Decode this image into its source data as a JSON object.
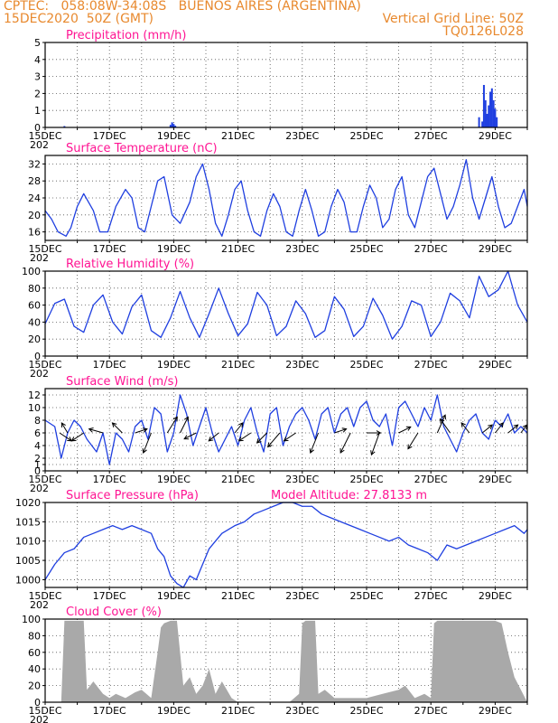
{
  "header": {
    "line1_left": "CPTEC:   058:08W-34:08S   BUENOS AIRES (ARGENTINA)",
    "line2_left": "15DEC2020  50Z (GMT)",
    "line2_right": "Vertical Grid Line: 50Z",
    "line3_right": "TQ0126L028"
  },
  "colors": {
    "header": "#e8892e",
    "title": "#ff1493",
    "series": "#1f3fe0",
    "cloud": "#a9a9a9",
    "arrow": "#000000"
  },
  "chart_data": [
    {
      "id": "precip",
      "type": "bar",
      "title": "Precipitation (mm/h)",
      "x_range": [
        15,
        30
      ],
      "ylim": [
        0,
        5
      ],
      "yticks": [
        0,
        1,
        2,
        3,
        4,
        5
      ],
      "x": [
        15.6,
        18.9,
        18.95,
        19.0,
        19.05,
        28.5,
        28.6,
        28.65,
        28.7,
        28.75,
        28.8,
        28.85,
        28.9,
        28.95,
        29.0,
        29.05
      ],
      "values": [
        0.08,
        0.15,
        0.3,
        0.2,
        0.1,
        0.6,
        0.35,
        2.5,
        1.6,
        0.8,
        1.3,
        2.1,
        2.3,
        1.6,
        1.1,
        0.6
      ]
    },
    {
      "id": "temp",
      "type": "line",
      "title": "Surface Temperature (nC)",
      "x_range": [
        15,
        30
      ],
      "ylim": [
        14,
        34
      ],
      "yticks": [
        16,
        20,
        24,
        28,
        32
      ],
      "x": [
        15.0,
        15.2,
        15.4,
        15.65,
        15.8,
        16.0,
        16.2,
        16.5,
        16.7,
        16.95,
        17.2,
        17.5,
        17.7,
        17.9,
        18.1,
        18.3,
        18.5,
        18.7,
        18.95,
        19.2,
        19.5,
        19.7,
        19.9,
        20.1,
        20.3,
        20.5,
        20.7,
        20.9,
        21.1,
        21.3,
        21.5,
        21.7,
        21.9,
        22.1,
        22.3,
        22.5,
        22.7,
        22.9,
        23.1,
        23.3,
        23.5,
        23.7,
        23.9,
        24.1,
        24.3,
        24.5,
        24.7,
        24.9,
        25.1,
        25.3,
        25.5,
        25.7,
        25.9,
        26.1,
        26.3,
        26.5,
        26.7,
        26.9,
        27.1,
        27.3,
        27.5,
        27.7,
        27.9,
        28.1,
        28.3,
        28.5,
        28.7,
        28.9,
        29.1,
        29.3,
        29.5,
        29.7,
        29.9,
        30.0
      ],
      "values": [
        21,
        19,
        16,
        15,
        17,
        22,
        25,
        21,
        16,
        16,
        22,
        26,
        24,
        17,
        16,
        22,
        28,
        29,
        20,
        18,
        23,
        29,
        32,
        26,
        18,
        15,
        20,
        26,
        28,
        21,
        16,
        15,
        21,
        25,
        22,
        16,
        15,
        21,
        26,
        21,
        15,
        16,
        22,
        26,
        23,
        16,
        16,
        22,
        27,
        24,
        17,
        19,
        26,
        29,
        20,
        17,
        23,
        29,
        31,
        25,
        19,
        22,
        27,
        33,
        24,
        19,
        24,
        29,
        22,
        17,
        18,
        22,
        26,
        22
      ]
    },
    {
      "id": "rh",
      "type": "line",
      "title": "Relative Humidity (%)",
      "x_range": [
        15,
        30
      ],
      "ylim": [
        0,
        100
      ],
      "yticks": [
        0,
        20,
        40,
        60,
        80,
        100
      ],
      "x": [
        15.0,
        15.3,
        15.6,
        15.9,
        16.2,
        16.5,
        16.8,
        17.1,
        17.4,
        17.7,
        18.0,
        18.3,
        18.6,
        18.9,
        19.2,
        19.5,
        19.8,
        20.1,
        20.4,
        20.7,
        21.0,
        21.3,
        21.6,
        21.9,
        22.2,
        22.5,
        22.8,
        23.1,
        23.4,
        23.7,
        24.0,
        24.3,
        24.6,
        24.9,
        25.2,
        25.5,
        25.8,
        26.1,
        26.4,
        26.7,
        27.0,
        27.3,
        27.6,
        27.9,
        28.2,
        28.5,
        28.8,
        29.1,
        29.4,
        29.7,
        30.0
      ],
      "values": [
        38,
        62,
        67,
        35,
        28,
        60,
        72,
        40,
        26,
        58,
        72,
        30,
        22,
        45,
        76,
        45,
        22,
        50,
        80,
        50,
        24,
        38,
        75,
        60,
        24,
        35,
        65,
        50,
        22,
        30,
        70,
        55,
        23,
        35,
        68,
        48,
        20,
        35,
        65,
        60,
        23,
        40,
        74,
        65,
        45,
        94,
        70,
        78,
        100,
        60,
        40
      ]
    },
    {
      "id": "wind",
      "type": "line",
      "title": "Surface Wind (m/s)",
      "x_range": [
        15,
        30
      ],
      "ylim": [
        0,
        13
      ],
      "yticks": [
        0,
        1,
        2,
        4,
        6,
        8,
        10,
        12
      ],
      "x": [
        15.0,
        15.3,
        15.5,
        15.7,
        15.9,
        16.1,
        16.3,
        16.6,
        16.8,
        17.0,
        17.2,
        17.4,
        17.6,
        17.8,
        18.0,
        18.2,
        18.4,
        18.6,
        18.8,
        19.0,
        19.2,
        19.4,
        19.6,
        19.8,
        20.0,
        20.2,
        20.4,
        20.6,
        20.8,
        21.0,
        21.2,
        21.4,
        21.6,
        21.8,
        22.0,
        22.2,
        22.4,
        22.6,
        22.8,
        23.0,
        23.2,
        23.4,
        23.6,
        23.8,
        24.0,
        24.2,
        24.4,
        24.6,
        24.8,
        25.0,
        25.2,
        25.4,
        25.6,
        25.8,
        26.0,
        26.2,
        26.4,
        26.6,
        26.8,
        27.0,
        27.2,
        27.4,
        27.6,
        27.8,
        28.0,
        28.2,
        28.4,
        28.6,
        28.8,
        29.0,
        29.2,
        29.4,
        29.6,
        29.8,
        30.0
      ],
      "values": [
        8,
        7,
        2,
        6,
        8,
        7,
        5,
        3,
        6,
        1,
        6,
        5,
        3,
        7,
        8,
        5,
        10,
        9,
        3,
        6,
        12,
        9,
        4,
        7,
        10,
        6,
        3,
        5,
        7,
        4,
        8,
        10,
        6,
        3,
        9,
        10,
        4,
        7,
        9,
        10,
        8,
        5,
        9,
        10,
        6,
        9,
        10,
        7,
        10,
        11,
        8,
        7,
        9,
        4,
        10,
        11,
        9,
        7,
        10,
        8,
        12,
        7,
        5,
        3,
        6,
        8,
        9,
        6,
        5,
        8,
        7,
        9,
        6,
        7,
        6
      ],
      "vectors": [
        {
          "x": 15.45,
          "u": 0.6,
          "v": -0.4
        },
        {
          "x": 15.7,
          "u": -0.3,
          "v": 0.5
        },
        {
          "x": 16.2,
          "u": -0.6,
          "v": -0.4
        },
        {
          "x": 16.8,
          "u": -0.7,
          "v": 0.2
        },
        {
          "x": 17.4,
          "u": -0.5,
          "v": 0.5
        },
        {
          "x": 17.8,
          "u": 0.6,
          "v": 0.2
        },
        {
          "x": 18.3,
          "u": -0.4,
          "v": -1.0
        },
        {
          "x": 18.8,
          "u": 0.5,
          "v": 0.8
        },
        {
          "x": 19.2,
          "u": 0.4,
          "v": 0.8
        },
        {
          "x": 19.7,
          "u": -0.6,
          "v": -0.3
        },
        {
          "x": 20.4,
          "u": -0.5,
          "v": -0.4
        },
        {
          "x": 20.9,
          "u": 0.4,
          "v": 0.5
        },
        {
          "x": 21.4,
          "u": -0.6,
          "v": -0.4
        },
        {
          "x": 21.9,
          "u": -0.5,
          "v": -0.5
        },
        {
          "x": 22.3,
          "u": -0.6,
          "v": -0.7
        },
        {
          "x": 22.8,
          "u": -0.6,
          "v": -0.4
        },
        {
          "x": 23.5,
          "u": -0.4,
          "v": -1.0
        },
        {
          "x": 24.0,
          "u": 0.6,
          "v": 0.2
        },
        {
          "x": 24.5,
          "u": -0.5,
          "v": -1.0
        },
        {
          "x": 25.0,
          "u": 0.7,
          "v": 0.0
        },
        {
          "x": 25.4,
          "u": -0.4,
          "v": -1.1
        },
        {
          "x": 26.0,
          "u": 0.6,
          "v": 0.3
        },
        {
          "x": 26.6,
          "u": -0.5,
          "v": -0.8
        },
        {
          "x": 27.2,
          "u": 0.4,
          "v": 0.9
        },
        {
          "x": 27.6,
          "u": -0.5,
          "v": 0.7
        },
        {
          "x": 28.2,
          "u": -0.4,
          "v": 0.5
        },
        {
          "x": 28.6,
          "u": 0.5,
          "v": 0.4
        },
        {
          "x": 29.0,
          "u": 0.4,
          "v": 0.5
        },
        {
          "x": 29.4,
          "u": 0.5,
          "v": 0.4
        },
        {
          "x": 29.8,
          "u": 0.3,
          "v": 0.4
        }
      ]
    },
    {
      "id": "pressure",
      "type": "line",
      "title": "Surface Pressure (hPa)",
      "annotation": "Model Altitude: 27.8133 m",
      "x_range": [
        15,
        30
      ],
      "ylim": [
        998,
        1020
      ],
      "yticks": [
        1000,
        1005,
        1010,
        1015,
        1020
      ],
      "x": [
        15.0,
        15.3,
        15.6,
        15.9,
        16.2,
        16.5,
        16.8,
        17.1,
        17.4,
        17.7,
        18.0,
        18.3,
        18.5,
        18.7,
        18.9,
        19.1,
        19.3,
        19.5,
        19.7,
        19.9,
        20.1,
        20.3,
        20.5,
        20.7,
        20.9,
        21.2,
        21.5,
        21.8,
        22.1,
        22.4,
        22.7,
        23.0,
        23.3,
        23.6,
        23.9,
        24.2,
        24.5,
        24.8,
        25.1,
        25.4,
        25.7,
        26.0,
        26.3,
        26.6,
        26.9,
        27.2,
        27.5,
        27.8,
        28.1,
        28.4,
        28.7,
        29.0,
        29.3,
        29.6,
        29.9,
        30.0
      ],
      "values": [
        1000,
        1004,
        1007,
        1008,
        1011,
        1012,
        1013,
        1014,
        1013,
        1014,
        1013,
        1012,
        1008,
        1006,
        1001,
        999,
        998,
        1001,
        1000,
        1004,
        1008,
        1010,
        1012,
        1013,
        1014,
        1015,
        1017,
        1018,
        1019,
        1020,
        1020,
        1019,
        1019,
        1017,
        1016,
        1015,
        1014,
        1013,
        1012,
        1011,
        1010,
        1011,
        1009,
        1008,
        1007,
        1005,
        1009,
        1008,
        1009,
        1010,
        1011,
        1012,
        1013,
        1014,
        1012,
        1013
      ]
    },
    {
      "id": "cloud",
      "type": "area",
      "title": "Cloud Cover (%)",
      "x_range": [
        15,
        30
      ],
      "ylim": [
        0,
        100
      ],
      "yticks": [
        0,
        20,
        40,
        60,
        80,
        100
      ],
      "x": [
        15.0,
        15.3,
        15.4,
        15.5,
        15.6,
        16.0,
        16.2,
        16.3,
        16.5,
        16.8,
        17.0,
        17.2,
        17.5,
        17.8,
        18.0,
        18.3,
        18.5,
        18.6,
        18.7,
        18.9,
        19.1,
        19.3,
        19.5,
        19.7,
        19.9,
        20.1,
        20.3,
        20.5,
        20.8,
        21.0,
        21.4,
        21.8,
        22.2,
        22.6,
        22.9,
        23.0,
        23.1,
        23.2,
        23.4,
        23.5,
        23.7,
        24.0,
        24.5,
        25.0,
        25.5,
        26.0,
        26.2,
        26.5,
        26.8,
        27.0,
        27.1,
        27.2,
        27.4,
        27.6,
        27.8,
        28.0,
        28.2,
        28.4,
        28.6,
        28.8,
        29.0,
        29.2,
        29.4,
        29.6,
        29.8,
        30.0
      ],
      "values": [
        0,
        0,
        0,
        0,
        98,
        98,
        98,
        15,
        25,
        10,
        5,
        10,
        5,
        12,
        15,
        5,
        60,
        90,
        95,
        98,
        98,
        20,
        30,
        10,
        20,
        40,
        10,
        25,
        5,
        0,
        0,
        0,
        0,
        0,
        10,
        95,
        98,
        98,
        98,
        10,
        15,
        5,
        5,
        5,
        10,
        15,
        20,
        5,
        10,
        5,
        95,
        98,
        98,
        98,
        98,
        98,
        98,
        98,
        98,
        98,
        98,
        95,
        60,
        30,
        15,
        0
      ]
    }
  ],
  "xaxis": {
    "ticks": [
      15,
      17,
      19,
      21,
      23,
      25,
      27,
      29
    ],
    "labels": [
      "15DEC",
      "17DEC",
      "19DEC",
      "21DEC",
      "23DEC",
      "25DEC",
      "27DEC",
      "29DEC"
    ],
    "stub": "202"
  }
}
